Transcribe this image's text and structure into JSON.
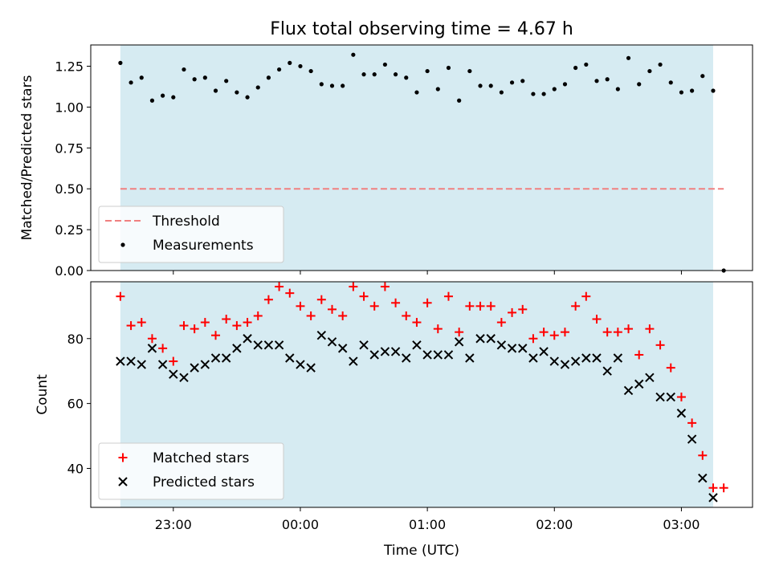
{
  "chart_data": [
    {
      "type": "scatter",
      "title": "Flux total observing time = 4.67 h",
      "ylabel": "Matched/Predicted stars",
      "xlabel": "",
      "ylim": [
        0,
        1.38
      ],
      "xlim_hours": [
        -1.65,
        3.56
      ],
      "yticks": [
        0.0,
        0.25,
        0.5,
        0.75,
        1.0,
        1.25
      ],
      "ytick_labels": [
        "0.00",
        "0.25",
        "0.50",
        "0.75",
        "1.00",
        "1.25"
      ],
      "grid": false,
      "legend": {
        "placement": "lower-left",
        "entries": [
          {
            "label": "Threshold",
            "style": "dashed-line",
            "color": "#f08080"
          },
          {
            "label": "Measurements",
            "style": "dot",
            "color": "#000000"
          }
        ]
      },
      "observing_window": {
        "start": "22:35",
        "end": "03:15",
        "color": "#add8e6"
      },
      "threshold": {
        "value": 0.5,
        "x_start": "22:35",
        "x_end": "03:20",
        "color": "#f08080"
      },
      "series": [
        {
          "name": "Measurements",
          "marker": "dot",
          "color": "#000000",
          "x": [
            "22:35",
            "22:40",
            "22:45",
            "22:50",
            "22:55",
            "23:00",
            "23:05",
            "23:10",
            "23:15",
            "23:20",
            "23:25",
            "23:30",
            "23:35",
            "23:40",
            "23:45",
            "23:50",
            "23:55",
            "00:00",
            "00:05",
            "00:10",
            "00:15",
            "00:20",
            "00:25",
            "00:30",
            "00:35",
            "00:40",
            "00:45",
            "00:50",
            "00:55",
            "01:00",
            "01:05",
            "01:10",
            "01:15",
            "01:20",
            "01:25",
            "01:30",
            "01:35",
            "01:40",
            "01:45",
            "01:50",
            "01:55",
            "02:00",
            "02:05",
            "02:10",
            "02:15",
            "02:20",
            "02:25",
            "02:30",
            "02:35",
            "02:40",
            "02:45",
            "02:50",
            "02:55",
            "03:00",
            "03:05",
            "03:10",
            "03:15",
            "03:20"
          ],
          "y": [
            1.27,
            1.15,
            1.18,
            1.04,
            1.07,
            1.06,
            1.23,
            1.17,
            1.18,
            1.1,
            1.16,
            1.09,
            1.06,
            1.12,
            1.18,
            1.23,
            1.27,
            1.25,
            1.22,
            1.14,
            1.13,
            1.13,
            1.32,
            1.2,
            1.2,
            1.26,
            1.2,
            1.18,
            1.09,
            1.22,
            1.11,
            1.24,
            1.04,
            1.22,
            1.13,
            1.13,
            1.09,
            1.15,
            1.16,
            1.08,
            1.08,
            1.11,
            1.14,
            1.24,
            1.26,
            1.16,
            1.17,
            1.11,
            1.3,
            1.14,
            1.22,
            1.26,
            1.15,
            1.09,
            1.1,
            1.19,
            1.1,
            0.0
          ]
        }
      ]
    },
    {
      "type": "scatter",
      "title": "",
      "xlabel": "Time (UTC)",
      "ylabel": "Count",
      "ylim": [
        28,
        97.5
      ],
      "xlim_hours": [
        -1.65,
        3.56
      ],
      "yticks": [
        40,
        60,
        80
      ],
      "ytick_labels": [
        "40",
        "60",
        "80"
      ],
      "xticks": [
        -1,
        0,
        1,
        2,
        3
      ],
      "xtick_labels": [
        "23:00",
        "00:00",
        "01:00",
        "02:00",
        "03:00"
      ],
      "grid": false,
      "legend": {
        "placement": "lower-left",
        "entries": [
          {
            "label": "Matched stars",
            "style": "plus",
            "color": "#ff0000"
          },
          {
            "label": "Predicted stars",
            "style": "cross",
            "color": "#000000"
          }
        ]
      },
      "observing_window": {
        "start": "22:35",
        "end": "03:15",
        "color": "#add8e6"
      },
      "series": [
        {
          "name": "Matched stars",
          "marker": "plus",
          "color": "#ff0000",
          "x": [
            "22:35",
            "22:40",
            "22:45",
            "22:50",
            "22:55",
            "23:00",
            "23:05",
            "23:10",
            "23:15",
            "23:20",
            "23:25",
            "23:30",
            "23:35",
            "23:40",
            "23:45",
            "23:50",
            "23:55",
            "00:00",
            "00:05",
            "00:10",
            "00:15",
            "00:20",
            "00:25",
            "00:30",
            "00:35",
            "00:40",
            "00:45",
            "00:50",
            "00:55",
            "01:00",
            "01:05",
            "01:10",
            "01:15",
            "01:20",
            "01:25",
            "01:30",
            "01:35",
            "01:40",
            "01:45",
            "01:50",
            "01:55",
            "02:00",
            "02:05",
            "02:10",
            "02:15",
            "02:20",
            "02:25",
            "02:30",
            "02:35",
            "02:40",
            "02:45",
            "02:50",
            "02:55",
            "03:00",
            "03:05",
            "03:10",
            "03:15",
            "03:20"
          ],
          "y": [
            93,
            84,
            85,
            80,
            77,
            73,
            84,
            83,
            85,
            81,
            86,
            84,
            85,
            87,
            92,
            96,
            94,
            90,
            87,
            92,
            89,
            87,
            96,
            93,
            90,
            96,
            91,
            87,
            85,
            91,
            83,
            93,
            82,
            90,
            90,
            90,
            85,
            88,
            89,
            80,
            82,
            81,
            82,
            90,
            93,
            86,
            82,
            82,
            83,
            75,
            83,
            78,
            71,
            62,
            54,
            44,
            34,
            34
          ]
        },
        {
          "name": "Predicted stars",
          "marker": "cross",
          "color": "#000000",
          "x": [
            "22:35",
            "22:40",
            "22:45",
            "22:50",
            "22:55",
            "23:00",
            "23:05",
            "23:10",
            "23:15",
            "23:20",
            "23:25",
            "23:30",
            "23:35",
            "23:40",
            "23:45",
            "23:50",
            "23:55",
            "00:00",
            "00:05",
            "00:10",
            "00:15",
            "00:20",
            "00:25",
            "00:30",
            "00:35",
            "00:40",
            "00:45",
            "00:50",
            "00:55",
            "01:00",
            "01:05",
            "01:10",
            "01:15",
            "01:20",
            "01:25",
            "01:30",
            "01:35",
            "01:40",
            "01:45",
            "01:50",
            "01:55",
            "02:00",
            "02:05",
            "02:10",
            "02:15",
            "02:20",
            "02:25",
            "02:30",
            "02:35",
            "02:40",
            "02:45",
            "02:50",
            "02:55",
            "03:00",
            "03:05",
            "03:10",
            "03:15"
          ],
          "y": [
            73,
            73,
            72,
            77,
            72,
            69,
            68,
            71,
            72,
            74,
            74,
            77,
            80,
            78,
            78,
            78,
            74,
            72,
            71,
            81,
            79,
            77,
            73,
            78,
            75,
            76,
            76,
            74,
            78,
            75,
            75,
            75,
            79,
            74,
            80,
            80,
            78,
            77,
            77,
            74,
            76,
            73,
            72,
            73,
            74,
            74,
            70,
            74,
            64,
            66,
            68,
            62,
            62,
            57,
            49,
            37,
            31
          ]
        }
      ]
    }
  ]
}
